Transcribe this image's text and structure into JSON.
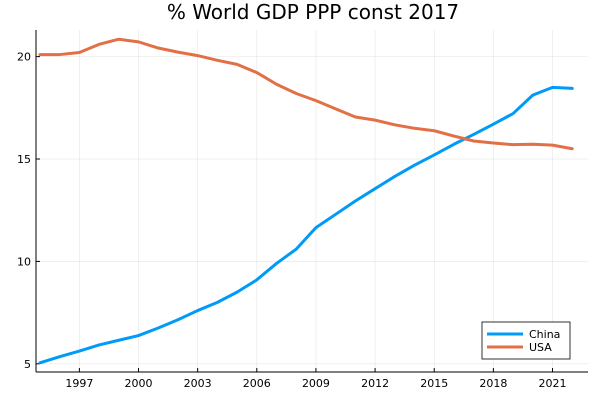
{
  "chart_data": {
    "type": "line",
    "title": "% World GDP PPP const 2017",
    "xlabel": "",
    "ylabel": "",
    "xlim": [
      1994.8,
      2022.8
    ],
    "ylim": [
      4.6,
      21.3
    ],
    "xticks": [
      1997,
      2000,
      2003,
      2006,
      2009,
      2012,
      2015,
      2018,
      2021
    ],
    "yticks": [
      5,
      10,
      15,
      20
    ],
    "grid": true,
    "legend": "bottom-right",
    "x": [
      1995,
      1996,
      1997,
      1998,
      1999,
      2000,
      2001,
      2002,
      2003,
      2004,
      2005,
      2006,
      2007,
      2008,
      2009,
      2010,
      2011,
      2012,
      2013,
      2014,
      2015,
      2016,
      2017,
      2018,
      2019,
      2020,
      2021,
      2022
    ],
    "series": [
      {
        "name": "China",
        "color": "#009af9",
        "values": [
          5.05,
          5.35,
          5.62,
          5.92,
          6.15,
          6.38,
          6.75,
          7.15,
          7.6,
          8.0,
          8.5,
          9.1,
          9.9,
          10.6,
          11.65,
          12.3,
          12.95,
          13.55,
          14.15,
          14.7,
          15.2,
          15.72,
          16.2,
          16.7,
          17.22,
          18.12,
          18.5,
          18.45
        ]
      },
      {
        "name": "USA",
        "color": "#e26f46",
        "values": [
          20.1,
          20.1,
          20.2,
          20.6,
          20.85,
          20.72,
          20.42,
          20.22,
          20.05,
          19.82,
          19.62,
          19.22,
          18.65,
          18.2,
          17.85,
          17.45,
          17.05,
          16.9,
          16.67,
          16.5,
          16.38,
          16.12,
          15.88,
          15.78,
          15.7,
          15.72,
          15.68,
          15.5
        ]
      }
    ]
  }
}
